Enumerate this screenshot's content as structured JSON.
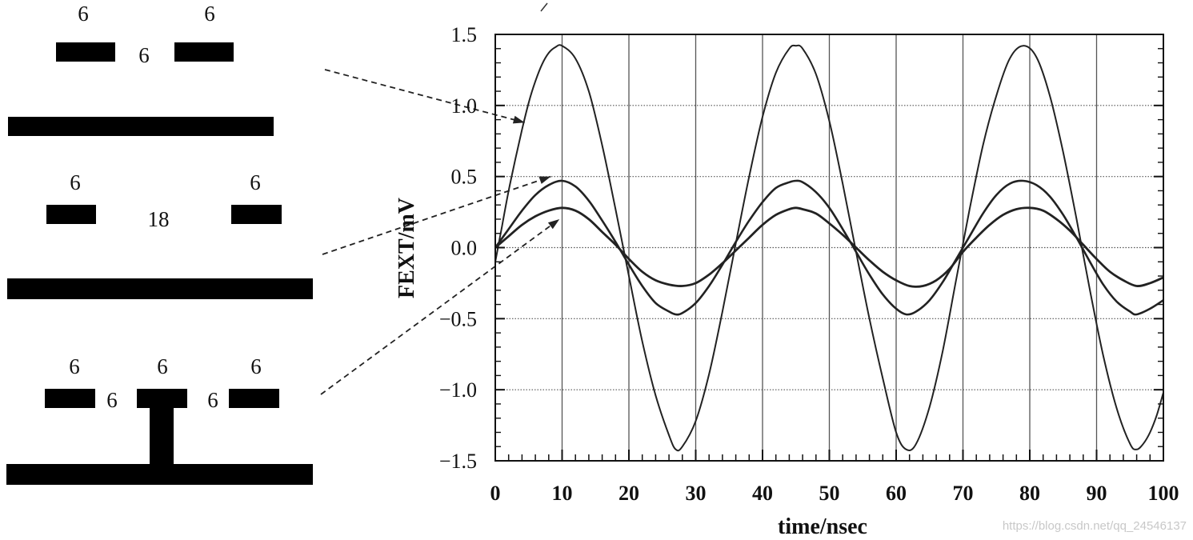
{
  "geometries": [
    {
      "name": "two traces over plane, 6-6-6 spacing",
      "labels": [
        "6",
        "6",
        "6"
      ]
    },
    {
      "name": "two traces over plane, 18 spacing",
      "labels": [
        "6",
        "6",
        "18"
      ]
    },
    {
      "name": "three traces, grounded guard trace",
      "labels": [
        "6",
        "6",
        "6",
        "6",
        "6"
      ]
    }
  ],
  "chart_data": {
    "type": "line",
    "title": "",
    "xlabel": "time/nsec",
    "ylabel": "FEXT/mV",
    "xlim": [
      0,
      100
    ],
    "ylim": [
      -1.5,
      1.5
    ],
    "x_ticks": [
      "0",
      "10",
      "20",
      "30",
      "40",
      "50",
      "60",
      "70",
      "80",
      "90",
      "100"
    ],
    "y_ticks": [
      "1.5",
      "1.0",
      "0.5",
      "0.0",
      "−0.5",
      "−1.0",
      "−1.5"
    ],
    "grid": true,
    "series": [
      {
        "x": [
          0,
          1,
          2,
          3,
          4,
          5,
          6,
          7,
          8,
          9,
          10,
          12,
          14,
          16,
          18,
          20,
          22,
          24,
          26,
          27,
          28,
          30,
          32,
          34,
          36,
          38,
          40,
          42,
          44,
          45,
          46,
          48,
          50,
          52,
          54,
          56,
          58,
          60,
          61.5,
          63,
          65,
          67,
          69,
          71,
          73,
          75,
          77,
          79,
          81,
          83,
          85,
          87,
          89,
          91,
          93,
          95,
          96,
          97,
          98,
          99,
          100
        ],
        "y": [
          -0.1,
          0.15,
          0.4,
          0.62,
          0.83,
          1.02,
          1.17,
          1.29,
          1.37,
          1.41,
          1.42,
          1.33,
          1.1,
          0.72,
          0.27,
          -0.2,
          -0.66,
          -1.04,
          -1.32,
          -1.42,
          -1.4,
          -1.22,
          -0.89,
          -0.45,
          0.03,
          0.5,
          0.92,
          1.23,
          1.4,
          1.42,
          1.4,
          1.22,
          0.89,
          0.45,
          -0.03,
          -0.5,
          -0.92,
          -1.3,
          -1.42,
          -1.38,
          -1.12,
          -0.72,
          -0.22,
          0.27,
          0.72,
          1.07,
          1.33,
          1.42,
          1.34,
          1.07,
          0.67,
          0.2,
          -0.3,
          -0.76,
          -1.13,
          -1.38,
          -1.42,
          -1.38,
          -1.3,
          -1.18,
          -1.02
        ]
      },
      {
        "x": [
          0,
          2,
          4,
          6,
          8,
          10,
          12,
          14,
          16,
          18,
          20,
          22,
          24,
          26,
          27,
          28,
          30,
          32,
          34,
          36,
          38,
          40,
          42,
          44,
          45,
          46,
          48,
          50,
          52,
          54,
          56,
          58,
          60,
          61.5,
          63,
          65,
          67,
          69,
          71,
          73,
          75,
          77,
          79,
          81,
          83,
          85,
          87,
          89,
          91,
          93,
          95,
          96,
          98,
          100
        ],
        "y": [
          0,
          0.13,
          0.26,
          0.37,
          0.44,
          0.47,
          0.43,
          0.33,
          0.19,
          0.04,
          -0.12,
          -0.27,
          -0.39,
          -0.45,
          -0.47,
          -0.46,
          -0.39,
          -0.27,
          -0.12,
          0.04,
          0.19,
          0.32,
          0.42,
          0.46,
          0.47,
          0.46,
          0.39,
          0.28,
          0.13,
          -0.03,
          -0.19,
          -0.33,
          -0.43,
          -0.47,
          -0.45,
          -0.37,
          -0.24,
          -0.08,
          0.08,
          0.24,
          0.37,
          0.45,
          0.47,
          0.44,
          0.36,
          0.23,
          0.07,
          -0.1,
          -0.26,
          -0.38,
          -0.45,
          -0.47,
          -0.43,
          -0.37
        ]
      },
      {
        "x": [
          0,
          2,
          4,
          6,
          8,
          10,
          12,
          14,
          16,
          18,
          20,
          22,
          24,
          26,
          28,
          30,
          32,
          34,
          36,
          38,
          40,
          42,
          44,
          45,
          46,
          48,
          50,
          52,
          54,
          56,
          58,
          60,
          62,
          64,
          66,
          68,
          70,
          72,
          74,
          76,
          78,
          80,
          82,
          84,
          86,
          88,
          90,
          92,
          94,
          96,
          98,
          100
        ],
        "y": [
          0,
          0.08,
          0.16,
          0.22,
          0.26,
          0.28,
          0.26,
          0.2,
          0.11,
          0.02,
          -0.08,
          -0.17,
          -0.23,
          -0.26,
          -0.27,
          -0.25,
          -0.19,
          -0.11,
          -0.02,
          0.07,
          0.16,
          0.23,
          0.27,
          0.28,
          0.27,
          0.24,
          0.17,
          0.09,
          0.0,
          -0.09,
          -0.17,
          -0.23,
          -0.27,
          -0.27,
          -0.23,
          -0.15,
          -0.03,
          0.07,
          0.16,
          0.23,
          0.27,
          0.28,
          0.26,
          0.2,
          0.12,
          0.02,
          -0.08,
          -0.17,
          -0.23,
          -0.27,
          -0.25,
          -0.21
        ]
      }
    ]
  },
  "watermark": "https://blog.csdn.net/qq_24546137",
  "colors": {
    "ink": "#222222",
    "copper": "#000000",
    "grid": "#555555",
    "watermark": "#c8c8c8"
  }
}
